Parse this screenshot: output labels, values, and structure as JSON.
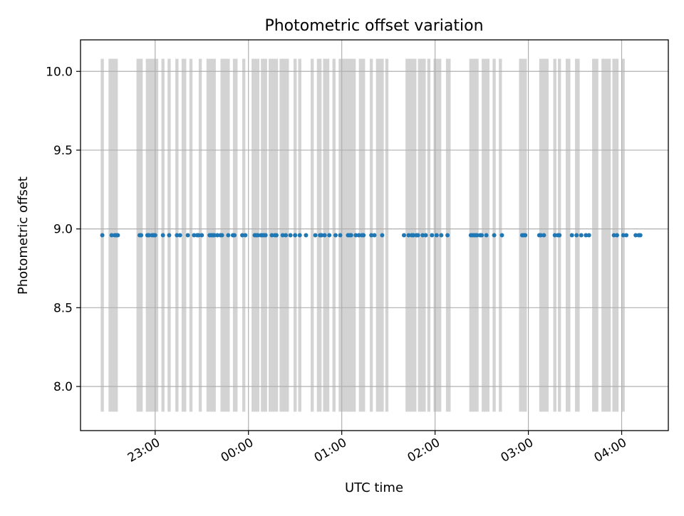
{
  "chart_data": {
    "type": "scatter",
    "title": "Photometric offset variation",
    "xlabel": "UTC time",
    "ylabel": "Photometric offset",
    "x_axis": "time",
    "xlim": [
      "22:12",
      "04:30"
    ],
    "ylim": [
      7.72,
      10.2
    ],
    "yticks": [
      8.0,
      8.5,
      9.0,
      9.5,
      10.0
    ],
    "ytick_labels": [
      "8.0",
      "8.5",
      "9.0",
      "9.5",
      "10.0"
    ],
    "xticks": [
      "23:00",
      "00:00",
      "01:00",
      "02:00",
      "03:00",
      "04:00"
    ],
    "xtick_labels": [
      "23:00",
      "00:00",
      "01:00",
      "02:00",
      "03:00",
      "04:00"
    ],
    "grid": true,
    "colors": {
      "points": "#1f77b4",
      "bands": "#d3d3d3",
      "grid": "#b0b0b0"
    },
    "band_range": [
      7.84,
      10.08
    ],
    "bands": [
      [
        "22:25",
        "22:27"
      ],
      [
        "22:30",
        "22:36"
      ],
      [
        "22:48",
        "22:52"
      ],
      [
        "22:54",
        "23:02"
      ],
      [
        "23:04",
        "23:06"
      ],
      [
        "23:08",
        "23:10"
      ],
      [
        "23:13",
        "23:15"
      ],
      [
        "23:17",
        "23:20"
      ],
      [
        "23:22",
        "23:24"
      ],
      [
        "23:28",
        "23:30"
      ],
      [
        "23:33",
        "23:39"
      ],
      [
        "23:42",
        "23:48"
      ],
      [
        "23:50",
        "23:53"
      ],
      [
        "23:56",
        "23:58"
      ],
      [
        "00:02",
        "00:07"
      ],
      [
        "00:08",
        "00:12"
      ],
      [
        "00:13",
        "00:19"
      ],
      [
        "00:20",
        "00:25"
      ],
      [
        "00:24",
        "00:26"
      ],
      [
        "00:29",
        "00:31"
      ],
      [
        "00:32",
        "00:34"
      ],
      [
        "00:40",
        "00:42"
      ],
      [
        "00:44",
        "00:47"
      ],
      [
        "00:48",
        "00:52"
      ],
      [
        "00:54",
        "00:56"
      ],
      [
        "00:58",
        "01:04"
      ],
      [
        "01:05",
        "01:07"
      ],
      [
        "01:03",
        "01:09"
      ],
      [
        "01:11",
        "01:15"
      ],
      [
        "01:18",
        "01:20"
      ],
      [
        "01:22",
        "01:27"
      ],
      [
        "01:28",
        "01:30"
      ],
      [
        "01:41",
        "01:48"
      ],
      [
        "01:49",
        "01:54"
      ],
      [
        "01:55",
        "01:57"
      ],
      [
        "01:59",
        "02:04"
      ],
      [
        "02:07",
        "02:10"
      ],
      [
        "02:22",
        "02:28"
      ],
      [
        "02:30",
        "02:35"
      ],
      [
        "02:37",
        "02:39"
      ],
      [
        "02:41",
        "02:43"
      ],
      [
        "02:54",
        "02:59"
      ],
      [
        "03:07",
        "03:13"
      ],
      [
        "03:16",
        "03:18"
      ],
      [
        "03:19",
        "03:21"
      ],
      [
        "03:24",
        "03:27"
      ],
      [
        "03:30",
        "03:33"
      ],
      [
        "03:41",
        "03:45"
      ],
      [
        "03:47",
        "03:53"
      ],
      [
        "03:54",
        "03:58"
      ],
      [
        "04:00",
        "04:02"
      ]
    ],
    "series": [
      {
        "x": [
          "22:26",
          "22:32",
          "22:34",
          "22:35",
          "22:36",
          "22:50",
          "22:51",
          "22:55",
          "22:56",
          "22:58",
          "22:59",
          "23:00",
          "23:05",
          "23:09",
          "23:14",
          "23:16",
          "23:21",
          "23:25",
          "23:27",
          "23:28",
          "23:30",
          "23:35",
          "23:36",
          "23:37",
          "23:38",
          "23:40",
          "23:42",
          "23:43",
          "23:47",
          "23:50",
          "23:51",
          "23:56",
          "23:58",
          "00:04",
          "00:05",
          "00:06",
          "00:08",
          "00:09",
          "00:10",
          "00:11",
          "00:15",
          "00:17",
          "00:18",
          "00:22",
          "00:24",
          "00:27",
          "00:30",
          "00:33",
          "00:37",
          "00:43",
          "00:46",
          "00:47",
          "00:49",
          "00:52",
          "00:56",
          "00:59",
          "01:04",
          "01:05",
          "01:06",
          "01:09",
          "01:11",
          "01:13",
          "01:14",
          "01:19",
          "01:21",
          "01:26",
          "01:40",
          "01:43",
          "01:45",
          "01:46",
          "01:48",
          "01:49",
          "01:52",
          "01:54",
          "01:58",
          "02:01",
          "02:04",
          "02:08",
          "02:23",
          "02:24",
          "02:25",
          "02:26",
          "02:27",
          "02:29",
          "02:30",
          "02:33",
          "02:38",
          "02:43",
          "02:56",
          "02:57",
          "02:58",
          "03:07",
          "03:08",
          "03:10",
          "03:17",
          "03:19",
          "03:20",
          "03:28",
          "03:31",
          "03:34",
          "03:37",
          "03:39",
          "03:55",
          "03:57",
          "04:01",
          "04:03",
          "04:09",
          "04:11",
          "04:12"
        ],
        "y": 8.96
      }
    ]
  }
}
